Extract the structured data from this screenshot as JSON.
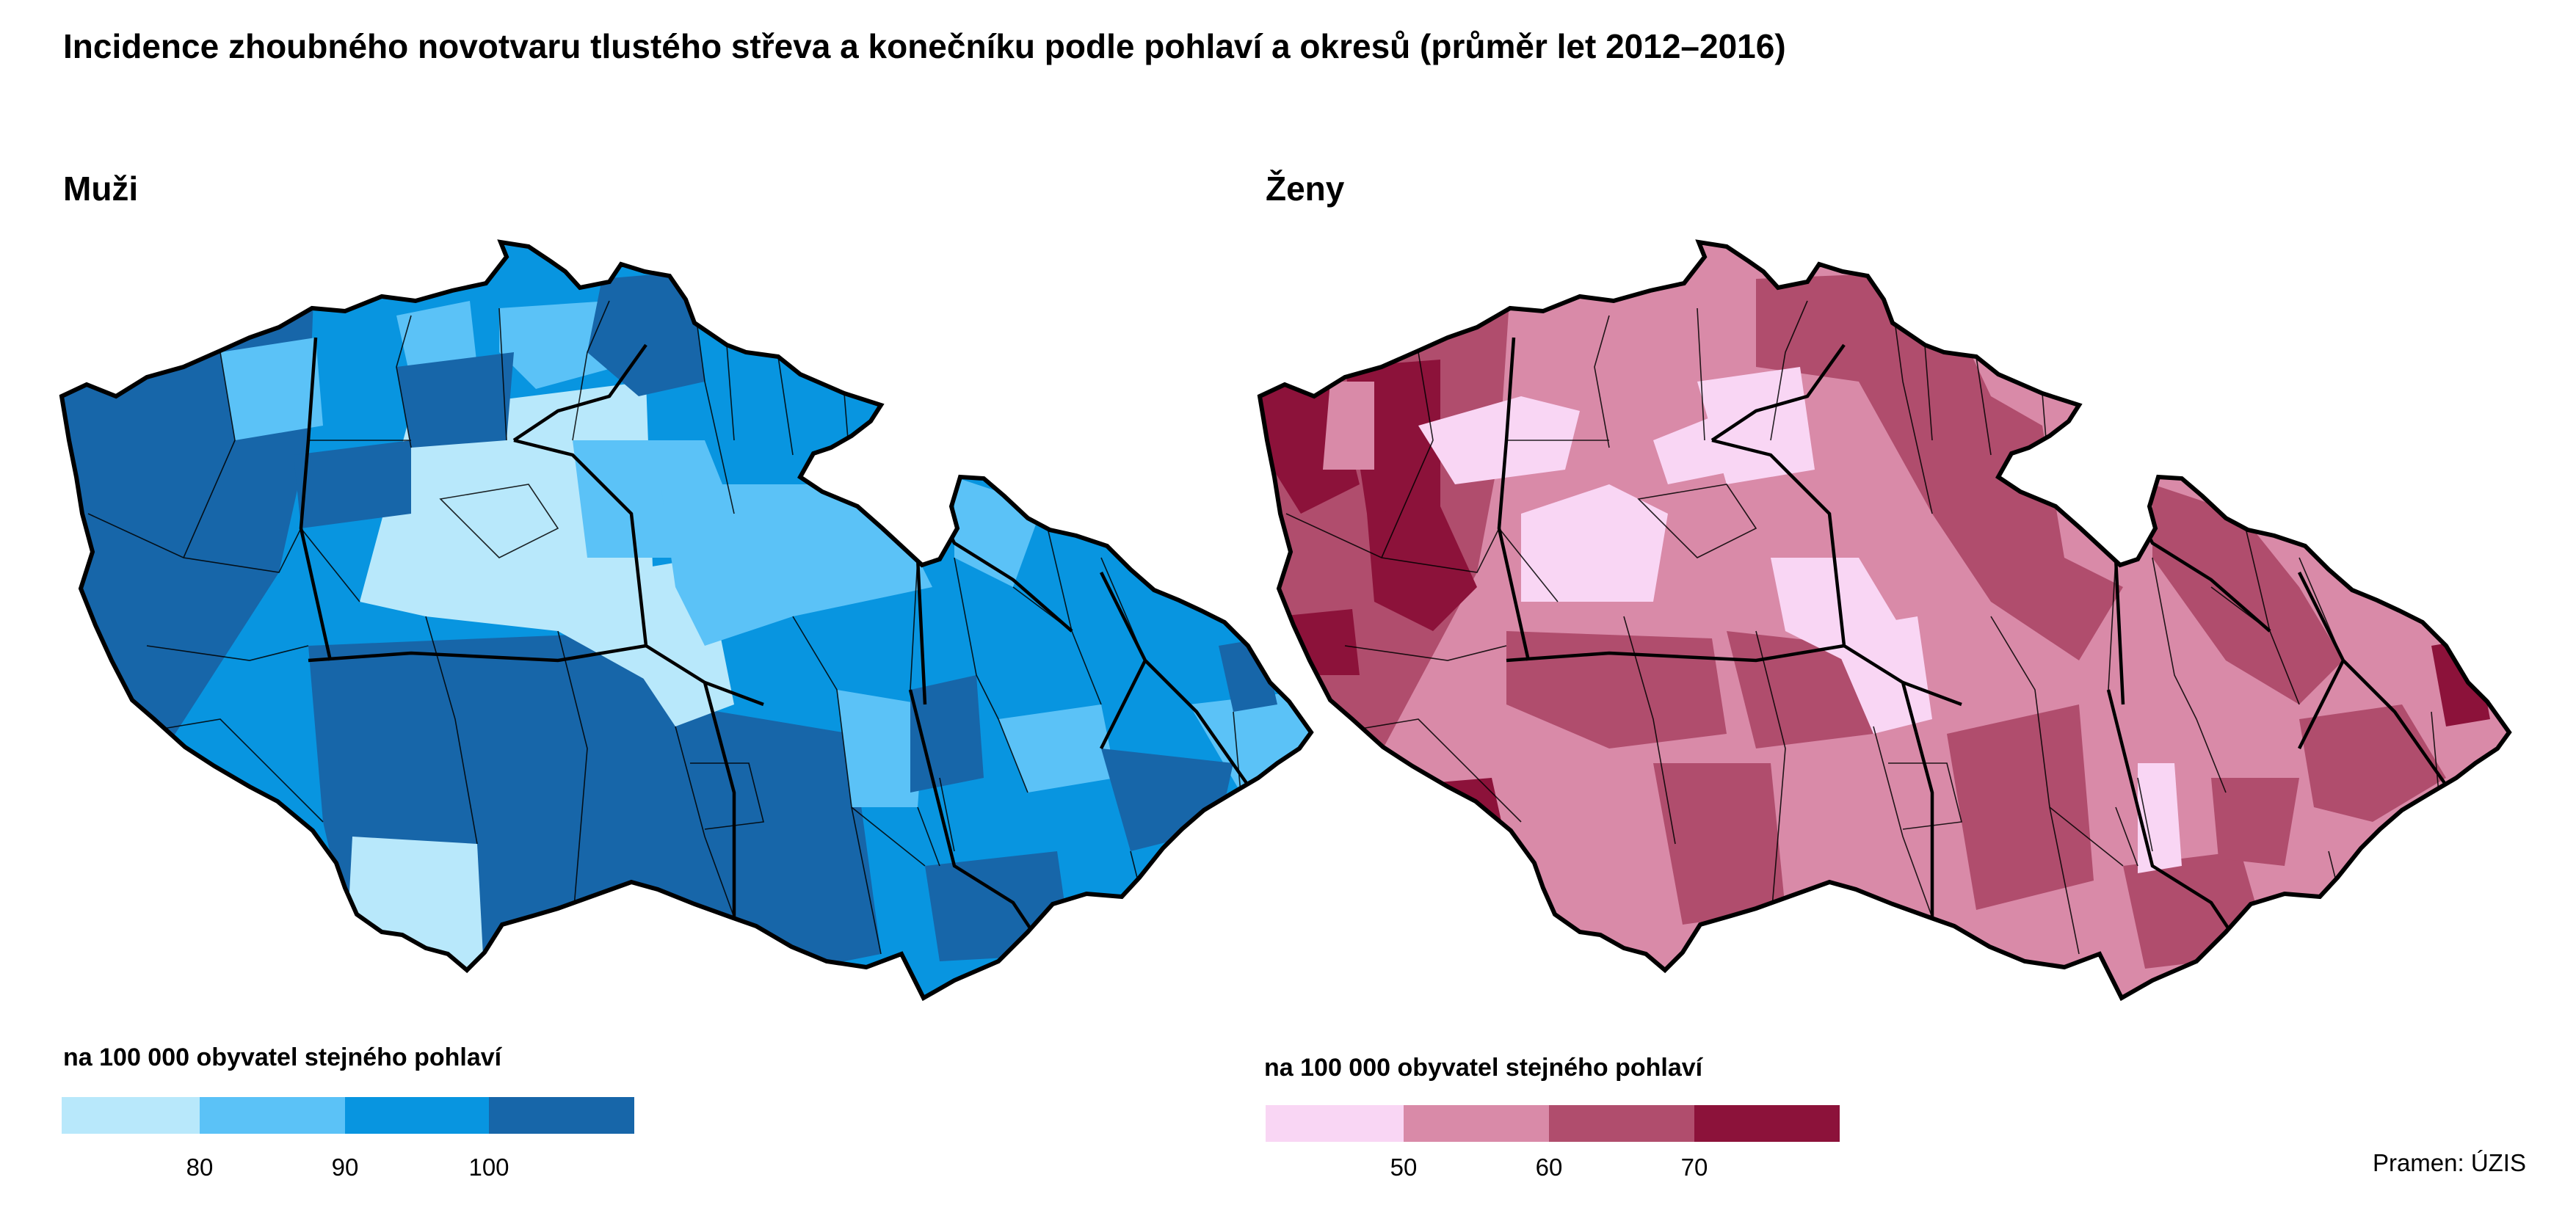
{
  "title": "Incidence zhoubného novotvaru tlustého střeva a konečníku podle pohlaví a okresů (průměr let 2012–2016)",
  "source": "Pramen: ÚZIS",
  "panels": [
    {
      "id": "men",
      "title": "Muži",
      "legend": {
        "title": "na 100 000 obyvatel stejného pohlaví",
        "breaks": [
          "80",
          "90",
          "100"
        ],
        "colors": [
          "#b8e8fb",
          "#5bc2f7",
          "#0895e0",
          "#1766a9"
        ]
      }
    },
    {
      "id": "women",
      "title": "Ženy",
      "legend": {
        "title": "na 100 000 obyvatel stejného pohlaví",
        "breaks": [
          "50",
          "60",
          "70"
        ],
        "colors": [
          "#f9d6f4",
          "#d98aa8",
          "#b04d6d",
          "#8c123a"
        ]
      }
    }
  ]
}
